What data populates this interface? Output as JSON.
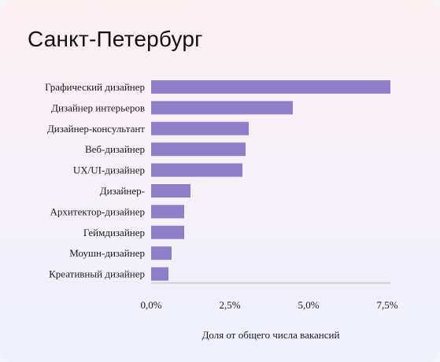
{
  "chart_data": {
    "type": "bar",
    "orientation": "horizontal",
    "title": "Санкт-Петербург",
    "xlabel": "Доля от общего числа вакансий",
    "ylabel": "",
    "categories": [
      "Графический дизайнер",
      "Дизайнер интерьеров",
      "Дизайнер-консультант",
      "Веб-дизайнер",
      "UX/UI-дизайнер",
      "Дизайнер-",
      "Архитектор-дизайнер",
      "Геймдизайнер",
      "Моушн-дизайнер",
      "Креативный дизайнер"
    ],
    "values": [
      7.6,
      4.5,
      3.1,
      3.0,
      2.9,
      1.25,
      1.05,
      1.05,
      0.65,
      0.55
    ],
    "xlim": [
      0,
      7.6
    ],
    "xticks": [
      0,
      2.5,
      5.0,
      7.5
    ],
    "xtick_labels": [
      "0,0%",
      "2,5%",
      "5,0%",
      "7,5%"
    ],
    "grid": false,
    "legend": "none",
    "bar_color": "#8f7fc8"
  }
}
